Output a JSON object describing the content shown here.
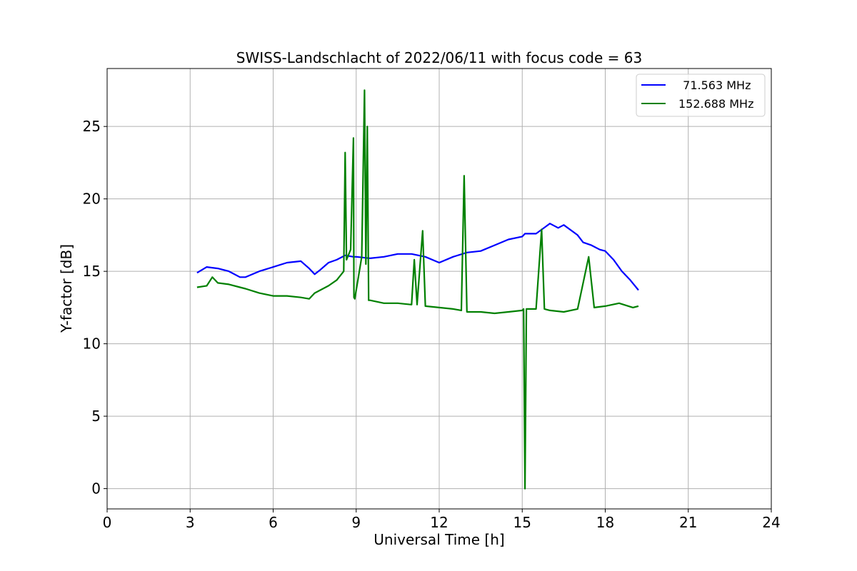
{
  "chart_data": {
    "type": "line",
    "title": "SWISS-Landschlacht of 2022/06/11 with focus code = 63",
    "xlabel": "Universal Time [h]",
    "ylabel": "Y-factor [dB]",
    "xlim": [
      0,
      24
    ],
    "ylim": [
      -1.4,
      29
    ],
    "xticks": [
      0,
      3,
      6,
      9,
      12,
      15,
      18,
      21,
      24
    ],
    "yticks": [
      0,
      5,
      10,
      15,
      20,
      25
    ],
    "grid": true,
    "legend_position": "top-right",
    "series": [
      {
        "name": "  71.563 MHz",
        "color": "#0000ff",
        "x": [
          3.25,
          3.6,
          4.0,
          4.4,
          4.8,
          5.0,
          5.5,
          6.0,
          6.5,
          7.0,
          7.3,
          7.5,
          7.7,
          8.0,
          8.3,
          8.6,
          8.9,
          9.0,
          9.5,
          10.0,
          10.5,
          11.0,
          11.5,
          12.0,
          12.5,
          13.0,
          13.5,
          14.0,
          14.5,
          15.0,
          15.1,
          15.5,
          16.0,
          16.3,
          16.5,
          17.0,
          17.2,
          17.5,
          17.8,
          18.0,
          18.3,
          18.6,
          18.9,
          19.2
        ],
        "y": [
          14.9,
          15.3,
          15.2,
          15.0,
          14.6,
          14.6,
          15.0,
          15.3,
          15.6,
          15.7,
          15.2,
          14.8,
          15.1,
          15.6,
          15.8,
          16.1,
          16.0,
          16.0,
          15.9,
          16.0,
          16.2,
          16.2,
          16.0,
          15.6,
          16.0,
          16.3,
          16.4,
          16.8,
          17.2,
          17.4,
          17.6,
          17.6,
          18.3,
          18.0,
          18.2,
          17.5,
          17.0,
          16.8,
          16.5,
          16.4,
          15.8,
          15.0,
          14.4,
          13.7
        ]
      },
      {
        "name": "152.688 MHz",
        "color": "#008000",
        "x": [
          3.25,
          3.6,
          3.8,
          4.0,
          4.4,
          4.8,
          5.0,
          5.5,
          6.0,
          6.5,
          7.0,
          7.3,
          7.5,
          8.0,
          8.3,
          8.55,
          8.6,
          8.65,
          8.8,
          8.9,
          8.92,
          8.95,
          9.2,
          9.3,
          9.35,
          9.4,
          9.45,
          9.5,
          10.0,
          10.5,
          11.0,
          11.1,
          11.2,
          11.4,
          11.5,
          12.0,
          12.5,
          12.8,
          12.9,
          13.0,
          13.5,
          14.0,
          14.5,
          15.0,
          15.05,
          15.1,
          15.15,
          15.5,
          15.7,
          15.8,
          16.0,
          16.5,
          17.0,
          17.4,
          17.6,
          18.0,
          18.5,
          19.0,
          19.2
        ],
        "y": [
          13.9,
          14.0,
          14.6,
          14.2,
          14.1,
          13.9,
          13.8,
          13.5,
          13.3,
          13.3,
          13.2,
          13.1,
          13.5,
          14.0,
          14.4,
          15.0,
          23.2,
          15.8,
          16.5,
          24.2,
          13.2,
          13.1,
          16.0,
          27.5,
          15.5,
          25.0,
          13.0,
          13.0,
          12.8,
          12.8,
          12.7,
          15.8,
          12.7,
          17.8,
          12.6,
          12.5,
          12.4,
          12.3,
          21.6,
          12.2,
          12.2,
          12.1,
          12.2,
          12.3,
          12.4,
          0.0,
          12.4,
          12.4,
          17.9,
          12.4,
          12.3,
          12.2,
          12.4,
          16.0,
          12.5,
          12.6,
          12.8,
          12.5,
          12.6
        ]
      }
    ]
  }
}
